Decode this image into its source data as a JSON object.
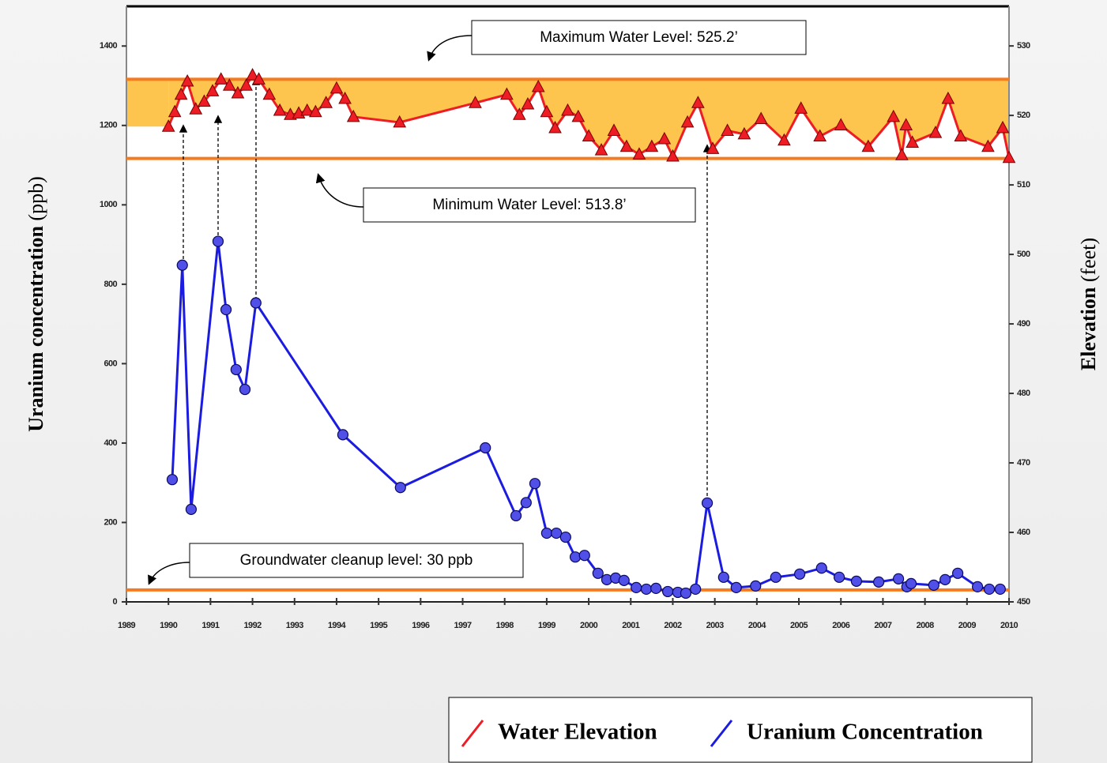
{
  "chart_data": {
    "type": "line",
    "y_label": {
      "main": "Uranium concentration",
      "unit": "(ppb)"
    },
    "y2_label": {
      "main": "Elevation",
      "unit": "(feet)"
    },
    "xlim": [
      1989,
      2010
    ],
    "xticks": [
      1989,
      1990,
      1991,
      1992,
      1993,
      1994,
      1995,
      1996,
      1997,
      1998,
      1999,
      2000,
      2001,
      2002,
      2003,
      2004,
      2005,
      2006,
      2007,
      2008,
      2009,
      2010
    ],
    "ylim": [
      0,
      1500
    ],
    "yticks": [
      0,
      200,
      400,
      600,
      800,
      1000,
      1200,
      1400
    ],
    "y2lim": [
      450,
      535.7
    ],
    "y2ticks": [
      450,
      460,
      470,
      480,
      490,
      500,
      510,
      520,
      530
    ],
    "legend": "bottom right",
    "band_color": "#fdc54e",
    "level_color": "#f47b20",
    "annotations": [
      {
        "text": "Maximum Water Level:  525.2’",
        "value": 525.2,
        "axis": "y2"
      },
      {
        "text": "Minimum Water Level:  513.8’",
        "value": 513.8,
        "axis": "y2"
      },
      {
        "text": "Groundwater cleanup level: 30 ppb",
        "value": 30,
        "axis": "y"
      }
    ],
    "series": [
      {
        "name": "Water Elevation",
        "color": "#ee1c25",
        "marker": "triangle",
        "axis": "y2",
        "x": [
          1990.0,
          1990.15,
          1990.3,
          1990.45,
          1990.65,
          1990.85,
          1991.05,
          1991.25,
          1991.45,
          1991.65,
          1991.85,
          1992.0,
          1992.15,
          1992.4,
          1992.65,
          1992.9,
          1993.1,
          1993.3,
          1993.5,
          1993.75,
          1994.0,
          1994.2,
          1994.4,
          1995.5,
          1997.3,
          1998.05,
          1998.35,
          1998.55,
          1998.8,
          1999.0,
          1999.2,
          1999.5,
          1999.75,
          2000.0,
          2000.3,
          2000.6,
          2000.9,
          2001.2,
          2001.5,
          2001.8,
          2002.0,
          2002.35,
          2002.6,
          2002.95,
          2003.3,
          2003.7,
          2004.1,
          2004.65,
          2005.05,
          2005.5,
          2006.0,
          2006.65,
          2007.25,
          2007.45,
          2007.55,
          2007.7,
          2008.25,
          2008.55,
          2008.85,
          2009.5,
          2009.85,
          2010.0
        ],
        "values": [
          518.4,
          520.5,
          523.0,
          524.9,
          520.9,
          522.0,
          523.5,
          525.2,
          524.3,
          523.2,
          524.3,
          525.8,
          525.2,
          523.0,
          520.7,
          520.1,
          520.3,
          520.7,
          520.5,
          521.8,
          523.9,
          522.4,
          519.8,
          519.0,
          521.8,
          523.0,
          520.1,
          521.6,
          524.1,
          520.5,
          518.2,
          520.7,
          519.8,
          517.0,
          515.0,
          517.8,
          515.5,
          514.4,
          515.5,
          516.6,
          514.1,
          519.0,
          521.8,
          515.2,
          517.8,
          517.3,
          519.5,
          516.4,
          521.0,
          517.0,
          518.6,
          515.5,
          519.8,
          514.3,
          518.6,
          516.1,
          517.5,
          522.4,
          517.0,
          515.5,
          518.2,
          513.9
        ]
      },
      {
        "name": "Uranium Concentration",
        "color": "#1c1ce0",
        "marker": "circle",
        "x": [
          1990.09,
          1990.33,
          1990.54,
          1991.18,
          1991.37,
          1991.61,
          1991.82,
          1992.08,
          1994.15,
          1995.52,
          1997.54,
          1998.27,
          1998.51,
          1998.72,
          1999.0,
          1999.23,
          1999.45,
          1999.68,
          1999.9,
          2000.22,
          2000.43,
          2000.64,
          2000.84,
          2001.13,
          2001.37,
          2001.6,
          2001.88,
          2002.12,
          2002.31,
          2002.54,
          2002.82,
          2003.21,
          2003.51,
          2003.97,
          2004.45,
          2005.02,
          2005.54,
          2005.96,
          2006.37,
          2006.9,
          2007.37,
          2007.57,
          2007.67,
          2008.21,
          2008.48,
          2008.78,
          2009.25,
          2009.53,
          2009.79
        ],
        "values": [
          308,
          848,
          233,
          908,
          736,
          585,
          535,
          753,
          421,
          288,
          388,
          217,
          250,
          298,
          173,
          173,
          163,
          113,
          117,
          72,
          56,
          60,
          54,
          36,
          32,
          34,
          26,
          24,
          22,
          32,
          249,
          62,
          36,
          40,
          62,
          70,
          85,
          62,
          52,
          50,
          58,
          38,
          46,
          42,
          56,
          72,
          38,
          32,
          32
        ]
      }
    ]
  }
}
